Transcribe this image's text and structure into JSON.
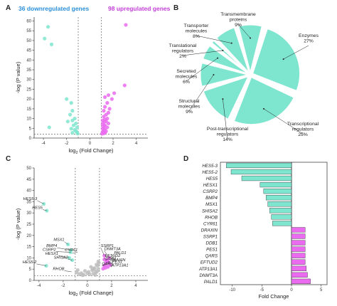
{
  "panels": {
    "a": {
      "letter": "A",
      "down_label": "36 downregulated genes",
      "up_label": "98 upregulated genes"
    },
    "b": {
      "letter": "B"
    },
    "c": {
      "letter": "C"
    },
    "d": {
      "letter": "D"
    }
  },
  "colors": {
    "down": "#7ee5cf",
    "up": "#ea6bf0",
    "ns": "#bdbdbd",
    "down_text": "#2b8fd9",
    "up_text": "#c33fd8",
    "pie": "#7ee5cf",
    "threshold": "#555555"
  },
  "chart_data": [
    {
      "id": "A",
      "type": "scatter",
      "xlabel": "log₂ (Fold Change)",
      "ylabel": "-log (P value)",
      "x_ticks": [
        -4,
        -2,
        0,
        2,
        4
      ],
      "y_ticks": [
        0,
        5,
        10,
        15,
        20,
        25,
        30,
        35,
        40,
        45,
        50,
        55,
        60
      ],
      "xlim": [
        -4.8,
        5.0
      ],
      "ylim": [
        0,
        62
      ],
      "thresholds": {
        "x": [
          -1,
          1
        ],
        "y": 2
      },
      "series": [
        {
          "name": "downregulated",
          "color": "#7ee5cf",
          "points": [
            [
              -3.6,
              57
            ],
            [
              -3.9,
              51
            ],
            [
              -3.3,
              48
            ],
            [
              -3.5,
              5.5
            ],
            [
              -2.0,
              20
            ],
            [
              -1.6,
              18
            ],
            [
              -1.5,
              14
            ],
            [
              -1.7,
              12
            ],
            [
              -1.3,
              10
            ],
            [
              -1.5,
              9
            ],
            [
              -1.9,
              8.5
            ],
            [
              -1.2,
              7.5
            ],
            [
              -1.4,
              6.5
            ],
            [
              -1.1,
              5.5
            ],
            [
              -1.6,
              4.8
            ],
            [
              -1.3,
              4.2
            ],
            [
              -1.2,
              3.6
            ],
            [
              -1.1,
              3.0
            ],
            [
              -1.5,
              2.7
            ],
            [
              -1.05,
              2.3
            ]
          ]
        },
        {
          "name": "upregulated",
          "color": "#ea6bf0",
          "points": [
            [
              3.1,
              58
            ],
            [
              3.0,
              27
            ],
            [
              2.1,
              23
            ],
            [
              1.6,
              22
            ],
            [
              1.3,
              21
            ],
            [
              1.9,
              20
            ],
            [
              1.5,
              18
            ],
            [
              1.3,
              16
            ],
            [
              1.7,
              15
            ],
            [
              1.2,
              14
            ],
            [
              1.6,
              13
            ],
            [
              1.4,
              12
            ],
            [
              1.2,
              11
            ],
            [
              1.5,
              10
            ],
            [
              1.3,
              9.5
            ],
            [
              1.1,
              9
            ],
            [
              1.4,
              8.5
            ],
            [
              1.2,
              8
            ],
            [
              1.6,
              7.5
            ],
            [
              1.1,
              7
            ],
            [
              1.3,
              6.5
            ],
            [
              1.2,
              6
            ],
            [
              1.5,
              5.5
            ],
            [
              1.1,
              5
            ],
            [
              1.3,
              4.5
            ],
            [
              1.2,
              4
            ],
            [
              1.4,
              3.5
            ],
            [
              1.1,
              3.2
            ],
            [
              1.3,
              2.8
            ],
            [
              1.2,
              2.4
            ],
            [
              1.05,
              2.2
            ]
          ]
        }
      ]
    },
    {
      "id": "B",
      "type": "pie",
      "categories": [
        "Transmembrane proteins",
        "Enzymes",
        "Transcriptional regulators",
        "Post-transcriptional regulators",
        "Structural molecules",
        "Secreted molecules",
        "Translational regulators",
        "Transporter molecules"
      ],
      "values": [
        9,
        27,
        25,
        14,
        9,
        6,
        2,
        8
      ],
      "labels": [
        {
          "name": "Transmembrane\nproteins",
          "pct": "9%"
        },
        {
          "name": "Enzymes",
          "pct": "27%"
        },
        {
          "name": "Transcriptional\nregulators",
          "pct": "25%"
        },
        {
          "name": "Post-transcriptional\nregulators",
          "pct": "14%"
        },
        {
          "name": "Structural\nmolecules",
          "pct": "9%"
        },
        {
          "name": "Secreted\nmolecules",
          "pct": "6%"
        },
        {
          "name": "Translational\nregulators",
          "pct": "2%"
        },
        {
          "name": "Transporter\nmolecules",
          "pct": "8%"
        }
      ]
    },
    {
      "id": "C",
      "type": "scatter",
      "xlabel": "log₂ (Fold Change)",
      "ylabel": "-log (P value)",
      "x_ticks": [
        -4,
        -2,
        0,
        2,
        4
      ],
      "y_ticks": [
        0,
        5,
        10,
        15,
        20,
        25,
        30,
        35,
        40,
        45,
        50
      ],
      "xlim": [
        -4.4,
        5.0
      ],
      "ylim": [
        0,
        50
      ],
      "thresholds": {
        "x": [
          -1,
          1
        ],
        "y": 2
      },
      "series": [
        {
          "name": "downregulated",
          "color": "#7ee5cf",
          "points": [
            [
              -3.6,
              34
            ],
            [
              -3.35,
              31
            ],
            [
              -3.4,
              6.5
            ],
            [
              -1.6,
              16
            ],
            [
              -1.4,
              12.5
            ],
            [
              -1.35,
              13.5
            ],
            [
              -1.5,
              10
            ],
            [
              -1.25,
              9
            ]
          ]
        },
        {
          "name": "upregulated",
          "color": "#ea6bf0",
          "points": [
            [
              1.4,
              11
            ],
            [
              1.8,
              10
            ],
            [
              1.4,
              9.3
            ],
            [
              1.6,
              9
            ],
            [
              1.7,
              8.5
            ],
            [
              1.55,
              8
            ],
            [
              1.8,
              7.6
            ],
            [
              1.5,
              7.2
            ],
            [
              1.9,
              6.8
            ],
            [
              1.4,
              6.5
            ],
            [
              1.7,
              6.0
            ],
            [
              1.5,
              5.6
            ],
            [
              1.3,
              5.2
            ]
          ]
        },
        {
          "name": "ns",
          "color": "#bdbdbd",
          "points": [
            [
              -0.3,
              2.5
            ],
            [
              0.2,
              2.7
            ],
            [
              0.5,
              3.0
            ],
            [
              -0.5,
              3.2
            ],
            [
              0.7,
              3.5
            ],
            [
              0.1,
              3.8
            ],
            [
              -0.2,
              4.2
            ],
            [
              0.4,
              4.5
            ],
            [
              0.8,
              4.0
            ],
            [
              -0.7,
              2.8
            ],
            [
              0.9,
              5.0
            ],
            [
              0.6,
              5.5
            ],
            [
              0.3,
              6.0
            ],
            [
              0.85,
              6.5
            ],
            [
              0.75,
              7.0
            ],
            [
              0.95,
              7.8
            ],
            [
              -0.8,
              4.6
            ],
            [
              -0.9,
              3.6
            ],
            [
              0.0,
              3.1
            ],
            [
              0.65,
              2.4
            ],
            [
              -0.4,
              2.3
            ],
            [
              0.45,
              5.2
            ],
            [
              0.9,
              8.4
            ],
            [
              0.55,
              4.8
            ]
          ]
        }
      ],
      "annotations": [
        {
          "text": "HES5-3",
          "x": -3.6,
          "y": 34,
          "tx": -4.15,
          "ty": 35.5
        },
        {
          "text": "HES5",
          "x": -3.35,
          "y": 31,
          "tx": -3.7,
          "ty": 31.5
        },
        {
          "text": "HES5-2",
          "x": -3.4,
          "y": 6.5,
          "tx": -4.2,
          "ty": 7.3
        },
        {
          "text": "MSX1",
          "x": -1.6,
          "y": 16,
          "tx": -1.9,
          "ty": 17.2
        },
        {
          "text": "BMP4",
          "x": -1.4,
          "y": 13.5,
          "tx": -2.5,
          "ty": 14.5
        },
        {
          "text": "CSRP2",
          "x": -1.35,
          "y": 12.5,
          "tx": -2.6,
          "ty": 12.8
        },
        {
          "text": "CYR61",
          "x": -1.25,
          "y": 12.0,
          "tx": -0.8,
          "ty": 12.6
        },
        {
          "text": "HESX1",
          "x": -1.5,
          "y": 10,
          "tx": -2.4,
          "ty": 11.0
        },
        {
          "text": "SHISA2",
          "x": -1.25,
          "y": 9,
          "tx": -1.6,
          "ty": 9.4
        },
        {
          "text": "RHOB",
          "x": -1.3,
          "y": 3.8,
          "tx": -1.9,
          "ty": 4.3
        },
        {
          "text": "SSRP1",
          "x": 1.4,
          "y": 11,
          "tx": 1.1,
          "ty": 14.6
        },
        {
          "text": "DNMT3A",
          "x": 1.8,
          "y": 10,
          "tx": 1.4,
          "ty": 13.2
        },
        {
          "text": "PALD1",
          "x": 1.8,
          "y": 10,
          "tx": 2.2,
          "ty": 11.4
        },
        {
          "text": "EFTUD2",
          "x": 1.4,
          "y": 9.3,
          "tx": 1.45,
          "ty": 10.1
        },
        {
          "text": "DDB1",
          "x": 1.6,
          "y": 9,
          "tx": 1.5,
          "ty": 8.9
        },
        {
          "text": "DRAXIN",
          "x": 1.7,
          "y": 8.5,
          "tx": 1.9,
          "ty": 8.2
        },
        {
          "text": "PES1",
          "x": 1.55,
          "y": 8,
          "tx": 2.05,
          "ty": 7.4
        },
        {
          "text": "QARS",
          "x": 1.5,
          "y": 7.2,
          "tx": 1.2,
          "ty": 6.5
        },
        {
          "text": "ATP13A1",
          "x": 1.9,
          "y": 6.8,
          "tx": 2.0,
          "ty": 5.9
        }
      ]
    },
    {
      "id": "D",
      "type": "bar",
      "orientation": "horizontal",
      "categories": [
        "HES5-3",
        "HES5-2",
        "HES5",
        "HESX1",
        "CSRP2",
        "BMP4",
        "MSX1",
        "SHISA2",
        "RHOB",
        "CYR61",
        "DRAXIN",
        "SSRP1",
        "DDB1",
        "PES1",
        "QARS",
        "EFTUD2",
        "ATP13A1",
        "DNMT3A",
        "PALD1"
      ],
      "values": [
        -11.0,
        -10.2,
        -8.4,
        -5.3,
        -4.7,
        -4.3,
        -4.0,
        -3.7,
        -3.4,
        -3.2,
        2.3,
        2.3,
        2.3,
        2.3,
        2.3,
        2.3,
        2.5,
        2.7,
        3.2
      ],
      "xlabel": "Fold Change",
      "x_ticks": [
        -10,
        -5,
        0,
        5
      ],
      "xlim": [
        -12,
        6
      ]
    }
  ]
}
